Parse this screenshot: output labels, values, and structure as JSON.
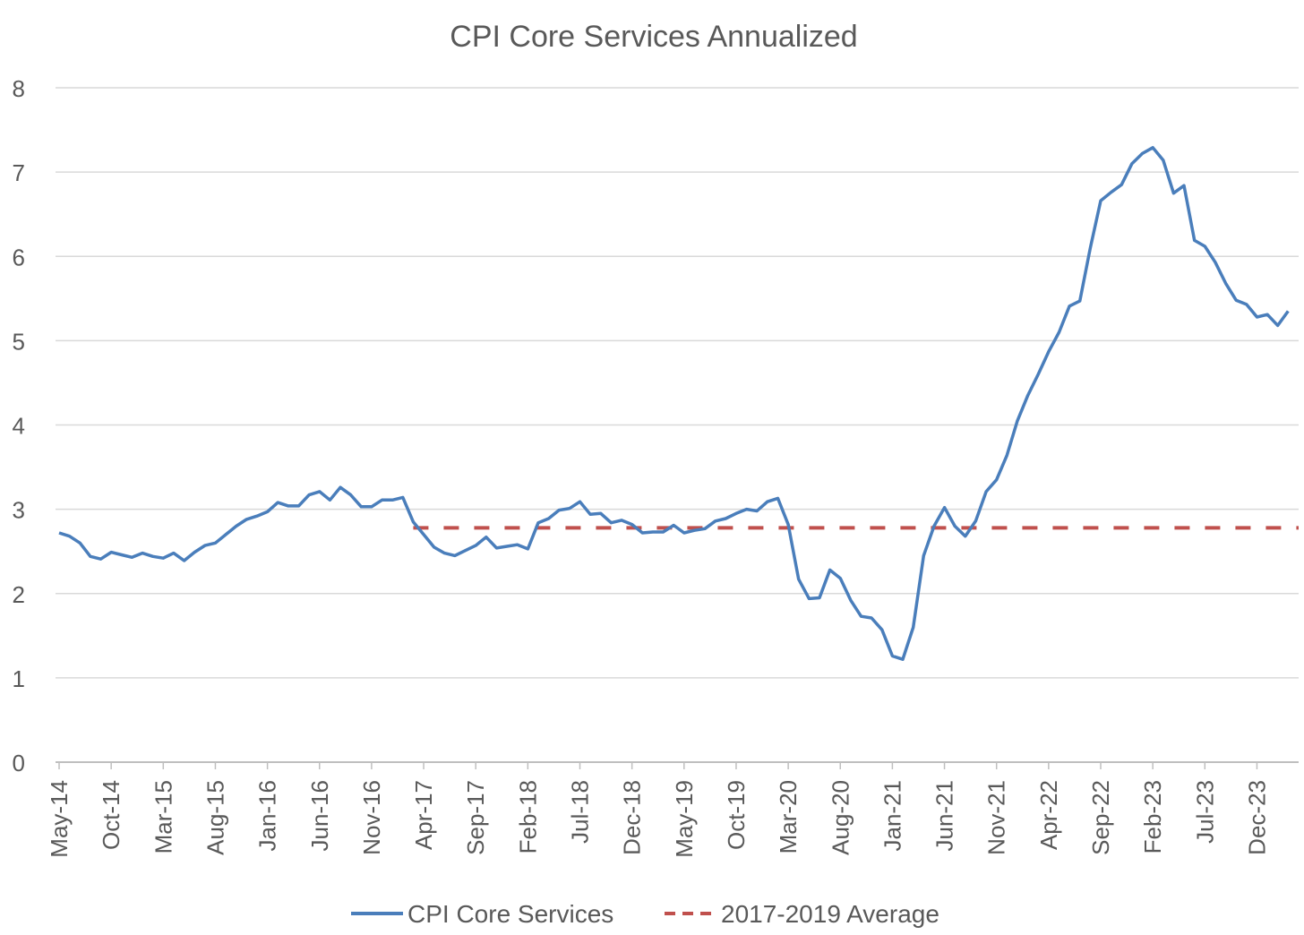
{
  "chart_data": {
    "type": "line",
    "title": "CPI Core Services Annualized",
    "xlabel": "",
    "ylabel": "",
    "ylim": [
      0,
      8
    ],
    "yticks": [
      "0",
      "1",
      "2",
      "3",
      "4",
      "5",
      "6",
      "7",
      "8"
    ],
    "grid": true,
    "legend_position": "bottom",
    "x_start": "May-14",
    "x_end": "Mar-24",
    "xtick_every_months": 5,
    "xticks": [
      "May-14",
      "Oct-14",
      "Mar-15",
      "Aug-15",
      "Jan-16",
      "Jun-16",
      "Nov-16",
      "Apr-17",
      "Sep-17",
      "Feb-18",
      "Jul-18",
      "Dec-18",
      "May-19",
      "Oct-19",
      "Mar-20",
      "Aug-20",
      "Jan-21",
      "Jun-21",
      "Nov-21",
      "Apr-22",
      "Sep-22",
      "Feb-23",
      "Jul-23",
      "Dec-23"
    ],
    "series": [
      {
        "name": "CPI Core Services",
        "color": "#4a7ebb",
        "style": "solid",
        "values": [
          2.72,
          2.68,
          2.6,
          2.44,
          2.41,
          2.49,
          2.46,
          2.43,
          2.48,
          2.44,
          2.42,
          2.48,
          2.39,
          2.49,
          2.57,
          2.6,
          2.7,
          2.8,
          2.88,
          2.92,
          2.97,
          3.08,
          3.04,
          3.04,
          3.17,
          3.21,
          3.11,
          3.26,
          3.17,
          3.03,
          3.03,
          3.11,
          3.11,
          3.14,
          2.85,
          2.7,
          2.55,
          2.48,
          2.45,
          2.51,
          2.57,
          2.67,
          2.54,
          2.56,
          2.58,
          2.53,
          2.84,
          2.89,
          2.99,
          3.01,
          3.09,
          2.94,
          2.95,
          2.84,
          2.87,
          2.82,
          2.72,
          2.73,
          2.73,
          2.81,
          2.72,
          2.75,
          2.77,
          2.86,
          2.89,
          2.95,
          3.0,
          2.98,
          3.09,
          3.13,
          2.82,
          2.17,
          1.94,
          1.95,
          2.28,
          2.18,
          1.92,
          1.73,
          1.71,
          1.57,
          1.26,
          1.22,
          1.6,
          2.45,
          2.8,
          3.02,
          2.8,
          2.68,
          2.86,
          3.21,
          3.35,
          3.64,
          4.05,
          4.35,
          4.6,
          4.87,
          5.1,
          5.41,
          5.47,
          6.1,
          6.66,
          6.76,
          6.85,
          7.1,
          7.22,
          7.29,
          7.14,
          6.75,
          6.84,
          6.19,
          6.12,
          5.93,
          5.68,
          5.48,
          5.43,
          5.28,
          5.31,
          5.18,
          5.35
        ]
      },
      {
        "name": "2017-2019 Average",
        "color": "#c0504d",
        "style": "dashed",
        "start_index": 34,
        "value": 2.78
      }
    ]
  }
}
